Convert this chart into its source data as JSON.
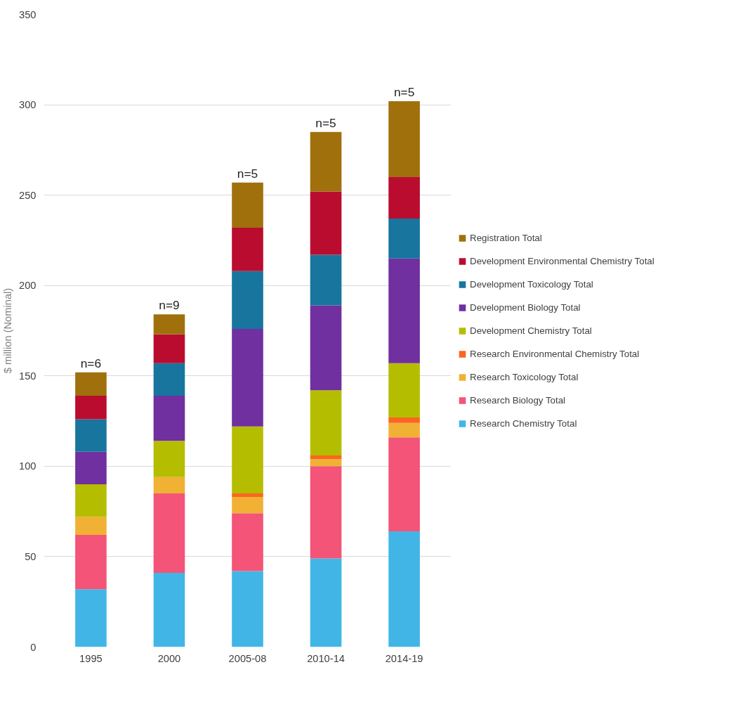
{
  "chart_data": {
    "type": "bar",
    "stacked": true,
    "ylabel": "$ million (Nominal)",
    "categories": [
      "1995",
      "2000",
      "2005-08",
      "2010-14",
      "2014-19"
    ],
    "series": [
      {
        "name": "Research Chemistry Total",
        "color": "#41b6e6",
        "values": [
          32,
          41,
          42,
          49,
          64
        ]
      },
      {
        "name": "Research Biology Total",
        "color": "#f35477",
        "values": [
          30,
          44,
          32,
          51,
          52
        ]
      },
      {
        "name": "Research Toxicology Total",
        "color": "#f0b135",
        "values": [
          10,
          9,
          9,
          4,
          8
        ]
      },
      {
        "name": "Research Environmental Chemistry Total",
        "color": "#fc6621",
        "values": [
          0,
          0,
          2,
          2,
          3
        ]
      },
      {
        "name": "Development Chemistry Total",
        "color": "#b5bd00",
        "values": [
          18,
          20,
          37,
          36,
          30
        ]
      },
      {
        "name": "Development Biology Total",
        "color": "#7030a0",
        "values": [
          18,
          25,
          54,
          47,
          58
        ]
      },
      {
        "name": "Development Toxicology Total",
        "color": "#17759e",
        "values": [
          18,
          18,
          32,
          28,
          22
        ]
      },
      {
        "name": "Development Environmental Chemistry Total",
        "color": "#ba0c2f",
        "values": [
          13,
          16,
          24,
          35,
          23
        ]
      },
      {
        "name": "Registration Total",
        "color": "#a0700d",
        "values": [
          13,
          11,
          25,
          33,
          42
        ]
      }
    ],
    "ylim": [
      0,
      350
    ],
    "yticks": [
      0,
      50,
      100,
      150,
      200,
      250,
      300,
      350
    ],
    "grid": "y",
    "legend": "right",
    "annotations": [
      {
        "text": "n=6",
        "x": "1995",
        "y": 152
      },
      {
        "text": "n=9",
        "x": "2000",
        "y": 184
      },
      {
        "text": "n=5",
        "x": "2005-08",
        "y": 257
      },
      {
        "text": "n=5",
        "x": "2010-14",
        "y": 285
      },
      {
        "text": "n=5",
        "x": "2014-19",
        "y": 302
      }
    ]
  }
}
